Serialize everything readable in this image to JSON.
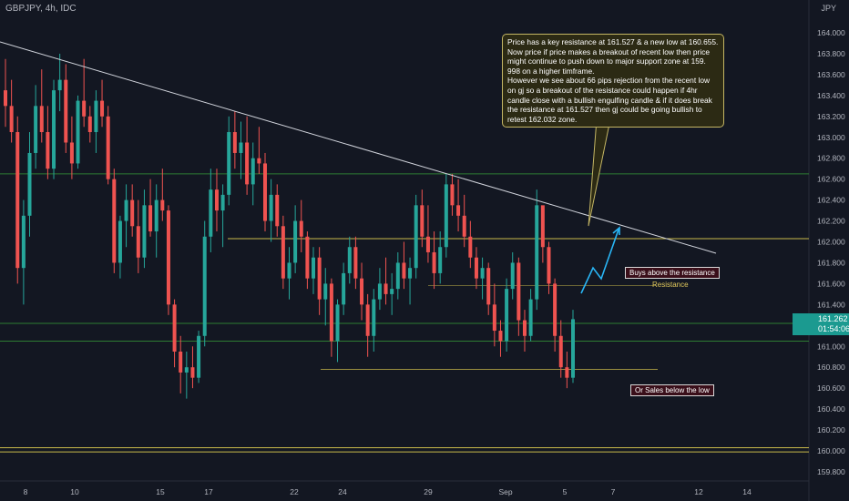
{
  "header": {
    "title": "GBPJPY, 4h, IDC",
    "currency": "JPY"
  },
  "note": {
    "text": "Price has a key resistance at 161.527 & a new low at 160.655. Now price if price makes a breakout of recent low then price might continue to push down to major support zone at 159. 998 on a higher timframe.\nHowever we see about 66 pips rejection from the recent low on gj so a breakout of the resistance could happen if 4hr candle close with a bullish engulfing candle & if it does break the resistance at 161.527 then gj could be going bullish to retest 162.032 zone."
  },
  "labels": {
    "buys": "Buys above the resistance",
    "resistance": "Resistance",
    "sales": "Or Sales below the low"
  },
  "price_tag": {
    "price": "161.262",
    "countdown": "01:54:06"
  },
  "colors": {
    "up": "#26a69a",
    "down": "#ef5350",
    "background": "#131722",
    "hline": "#2e7d32",
    "zone": "#c8b84a",
    "trendline": "#d1d4dc",
    "arrow": "#29b6f6"
  },
  "chart_data": {
    "type": "candlestick",
    "symbol": "GBPJPY",
    "timeframe": "4h",
    "y_ticks": [
      "164.000",
      "163.800",
      "163.600",
      "163.400",
      "163.200",
      "163.000",
      "162.800",
      "162.600",
      "162.400",
      "162.200",
      "162.000",
      "161.800",
      "161.600",
      "161.400",
      "161.200",
      "161.000",
      "160.800",
      "160.600",
      "160.400",
      "160.200",
      "160.000",
      "159.800"
    ],
    "x_ticks": [
      "8",
      "10",
      "15",
      "17",
      "22",
      "24",
      "29",
      "Sep",
      "5",
      "7",
      "12",
      "14"
    ],
    "ylim": [
      159.7,
      164.2
    ],
    "candles_ohlc": [
      [
        163.45,
        163.75,
        163.1,
        163.3
      ],
      [
        163.3,
        163.55,
        162.95,
        163.05
      ],
      [
        163.05,
        163.2,
        161.6,
        161.75
      ],
      [
        161.75,
        162.4,
        161.4,
        162.25
      ],
      [
        162.25,
        163.05,
        162.05,
        162.85
      ],
      [
        162.85,
        163.5,
        162.7,
        163.3
      ],
      [
        163.3,
        163.65,
        162.95,
        163.05
      ],
      [
        163.05,
        163.3,
        162.6,
        162.7
      ],
      [
        162.7,
        163.55,
        162.6,
        163.45
      ],
      [
        163.45,
        163.8,
        163.25,
        163.55
      ],
      [
        163.55,
        163.7,
        162.85,
        162.95
      ],
      [
        162.95,
        163.2,
        162.6,
        162.75
      ],
      [
        162.75,
        163.4,
        162.7,
        163.35
      ],
      [
        163.35,
        163.75,
        163.1,
        163.2
      ],
      [
        163.2,
        163.3,
        162.95,
        163.05
      ],
      [
        163.05,
        163.45,
        162.85,
        163.35
      ],
      [
        163.35,
        163.55,
        163.1,
        163.2
      ],
      [
        163.2,
        163.3,
        162.55,
        162.6
      ],
      [
        162.6,
        162.7,
        161.7,
        161.8
      ],
      [
        161.8,
        162.25,
        161.65,
        162.2
      ],
      [
        162.2,
        162.55,
        161.95,
        162.4
      ],
      [
        162.4,
        162.55,
        162.05,
        162.15
      ],
      [
        162.15,
        162.4,
        161.7,
        161.85
      ],
      [
        161.85,
        162.5,
        161.75,
        162.35
      ],
      [
        162.35,
        162.6,
        162.05,
        162.1
      ],
      [
        162.1,
        162.55,
        161.85,
        162.4
      ],
      [
        162.4,
        162.7,
        162.2,
        162.3
      ],
      [
        162.3,
        162.35,
        161.3,
        161.4
      ],
      [
        161.4,
        161.45,
        160.8,
        160.95
      ],
      [
        160.95,
        161.1,
        160.55,
        160.75
      ],
      [
        160.75,
        160.95,
        160.5,
        160.8
      ],
      [
        160.8,
        161.0,
        160.6,
        160.7
      ],
      [
        160.7,
        161.15,
        160.65,
        161.1
      ],
      [
        161.1,
        162.2,
        161.0,
        162.05
      ],
      [
        162.05,
        162.7,
        161.9,
        162.5
      ],
      [
        162.5,
        162.7,
        162.1,
        162.3
      ],
      [
        162.3,
        162.55,
        161.95,
        162.45
      ],
      [
        162.45,
        163.2,
        162.35,
        163.05
      ],
      [
        163.05,
        163.25,
        162.7,
        162.85
      ],
      [
        162.85,
        163.15,
        162.6,
        162.95
      ],
      [
        162.95,
        163.2,
        162.45,
        162.55
      ],
      [
        162.55,
        162.95,
        162.35,
        162.8
      ],
      [
        162.8,
        163.1,
        162.65,
        162.75
      ],
      [
        162.75,
        162.85,
        162.1,
        162.2
      ],
      [
        162.2,
        162.6,
        162.0,
        162.45
      ],
      [
        162.45,
        162.55,
        162.05,
        162.15
      ],
      [
        162.15,
        162.25,
        161.55,
        161.65
      ],
      [
        161.65,
        161.95,
        161.45,
        161.8
      ],
      [
        161.8,
        162.35,
        161.7,
        162.2
      ],
      [
        162.2,
        162.4,
        161.9,
        162.05
      ],
      [
        162.05,
        162.1,
        161.55,
        161.65
      ],
      [
        161.65,
        161.95,
        161.5,
        161.85
      ],
      [
        161.85,
        161.95,
        161.3,
        161.45
      ],
      [
        161.45,
        161.75,
        161.2,
        161.6
      ],
      [
        161.6,
        161.65,
        160.9,
        161.05
      ],
      [
        161.05,
        161.45,
        160.85,
        161.4
      ],
      [
        161.4,
        161.8,
        161.3,
        161.7
      ],
      [
        161.7,
        162.05,
        161.6,
        161.95
      ],
      [
        161.95,
        162.05,
        161.55,
        161.65
      ],
      [
        161.65,
        161.8,
        161.25,
        161.4
      ],
      [
        161.4,
        161.5,
        160.9,
        161.1
      ],
      [
        161.1,
        161.55,
        160.95,
        161.45
      ],
      [
        161.45,
        161.75,
        161.35,
        161.6
      ],
      [
        161.6,
        161.85,
        161.4,
        161.5
      ],
      [
        161.5,
        161.7,
        161.3,
        161.55
      ],
      [
        161.55,
        161.9,
        161.45,
        161.8
      ],
      [
        161.8,
        162.0,
        161.55,
        161.65
      ],
      [
        161.65,
        161.85,
        161.4,
        161.75
      ],
      [
        161.75,
        162.45,
        161.65,
        162.35
      ],
      [
        162.35,
        162.5,
        161.95,
        162.05
      ],
      [
        162.05,
        162.35,
        161.8,
        161.9
      ],
      [
        161.9,
        162.1,
        161.55,
        161.7
      ],
      [
        161.7,
        162.1,
        161.6,
        161.95
      ],
      [
        161.95,
        162.65,
        161.85,
        162.55
      ],
      [
        162.55,
        162.65,
        162.25,
        162.35
      ],
      [
        162.35,
        162.6,
        162.1,
        162.25
      ],
      [
        162.25,
        162.45,
        161.95,
        162.05
      ],
      [
        162.05,
        162.2,
        161.75,
        161.85
      ],
      [
        161.85,
        161.95,
        161.55,
        161.65
      ],
      [
        161.65,
        161.85,
        161.45,
        161.75
      ],
      [
        161.75,
        161.8,
        161.3,
        161.4
      ],
      [
        161.4,
        161.6,
        161.0,
        161.15
      ],
      [
        161.15,
        161.25,
        160.9,
        161.05
      ],
      [
        161.05,
        161.65,
        160.95,
        161.55
      ],
      [
        161.55,
        161.9,
        161.45,
        161.8
      ],
      [
        161.8,
        161.85,
        161.1,
        161.25
      ],
      [
        161.25,
        161.35,
        160.95,
        161.1
      ],
      [
        161.1,
        161.55,
        161.05,
        161.45
      ],
      [
        161.45,
        162.5,
        161.35,
        162.35
      ],
      [
        162.35,
        162.3,
        161.8,
        161.95
      ],
      [
        161.95,
        162.0,
        161.5,
        161.6
      ],
      [
        161.6,
        161.65,
        160.95,
        161.1
      ],
      [
        161.1,
        161.25,
        160.7,
        160.8
      ],
      [
        160.8,
        160.95,
        160.6,
        160.7
      ],
      [
        160.7,
        161.35,
        160.65,
        161.26
      ]
    ]
  }
}
